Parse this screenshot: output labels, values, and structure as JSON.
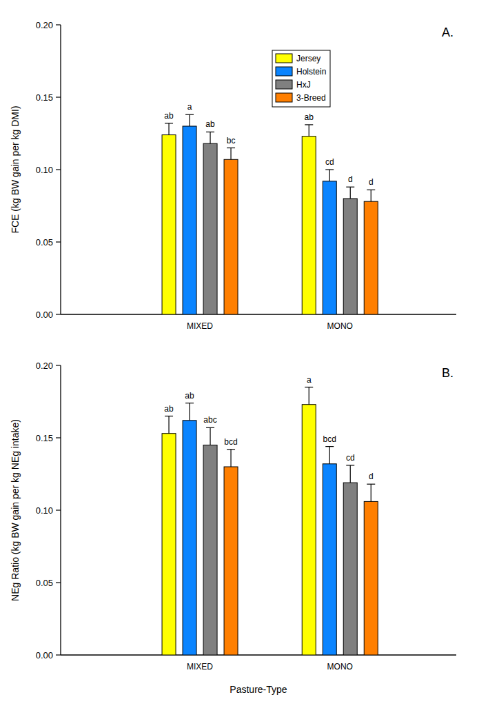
{
  "chart_data": [
    {
      "type": "bar",
      "title": "A.",
      "y_label": "FCE (kg BW gain per kg DMI)",
      "categories": [
        "MIXED",
        "MONO"
      ],
      "series": [
        {
          "name": "Jersey",
          "color": "#ffff00",
          "values": [
            0.124,
            0.123
          ],
          "errors": [
            0.008,
            0.008
          ],
          "annotations": [
            "ab",
            "ab"
          ]
        },
        {
          "name": "Holstein",
          "color": "#0a84ff",
          "values": [
            0.13,
            0.092
          ],
          "errors": [
            0.008,
            0.008
          ],
          "annotations": [
            "a",
            "cd"
          ]
        },
        {
          "name": "HxJ",
          "color": "#808080",
          "values": [
            0.118,
            0.08
          ],
          "errors": [
            0.008,
            0.008
          ],
          "annotations": [
            "ab",
            "d"
          ]
        },
        {
          "name": "3-Breed",
          "color": "#ff7f00",
          "values": [
            0.107,
            0.078
          ],
          "errors": [
            0.008,
            0.008
          ],
          "annotations": [
            "bc",
            "d"
          ]
        }
      ],
      "ylim": [
        0,
        0.2
      ],
      "yticks": [
        {
          "value": 0,
          "label": "0.00"
        },
        {
          "value": 0.05,
          "label": "0.05"
        },
        {
          "value": 0.1,
          "label": "0.10"
        },
        {
          "value": 0.15,
          "label": "0.15"
        },
        {
          "value": 0.2,
          "label": "0.20"
        }
      ],
      "legend": "upper right",
      "grid": false
    },
    {
      "type": "bar",
      "title": "B.",
      "y_label": "NEg Ratio (kg BW gain per kg NEg intake)",
      "x_label": "Pasture-Type",
      "categories": [
        "MIXED",
        "MONO"
      ],
      "series": [
        {
          "name": "Jersey",
          "color": "#ffff00",
          "values": [
            0.153,
            0.173
          ],
          "errors": [
            0.012,
            0.012
          ],
          "annotations": [
            "ab",
            "a"
          ]
        },
        {
          "name": "Holstein",
          "color": "#0a84ff",
          "values": [
            0.162,
            0.132
          ],
          "errors": [
            0.012,
            0.012
          ],
          "annotations": [
            "ab",
            "bcd"
          ]
        },
        {
          "name": "HxJ",
          "color": "#808080",
          "values": [
            0.145,
            0.119
          ],
          "errors": [
            0.012,
            0.012
          ],
          "annotations": [
            "abc",
            "cd"
          ]
        },
        {
          "name": "3-Breed",
          "color": "#ff7f00",
          "values": [
            0.13,
            0.106
          ],
          "errors": [
            0.012,
            0.012
          ],
          "annotations": [
            "bcd",
            "d"
          ]
        }
      ],
      "ylim": [
        0,
        0.2
      ],
      "yticks": [
        {
          "value": 0,
          "label": "0.00"
        },
        {
          "value": 0.05,
          "label": "0.05"
        },
        {
          "value": 0.1,
          "label": "0.10"
        },
        {
          "value": 0.15,
          "label": "0.15"
        },
        {
          "value": 0.2,
          "label": "0.20"
        }
      ],
      "grid": false
    }
  ]
}
